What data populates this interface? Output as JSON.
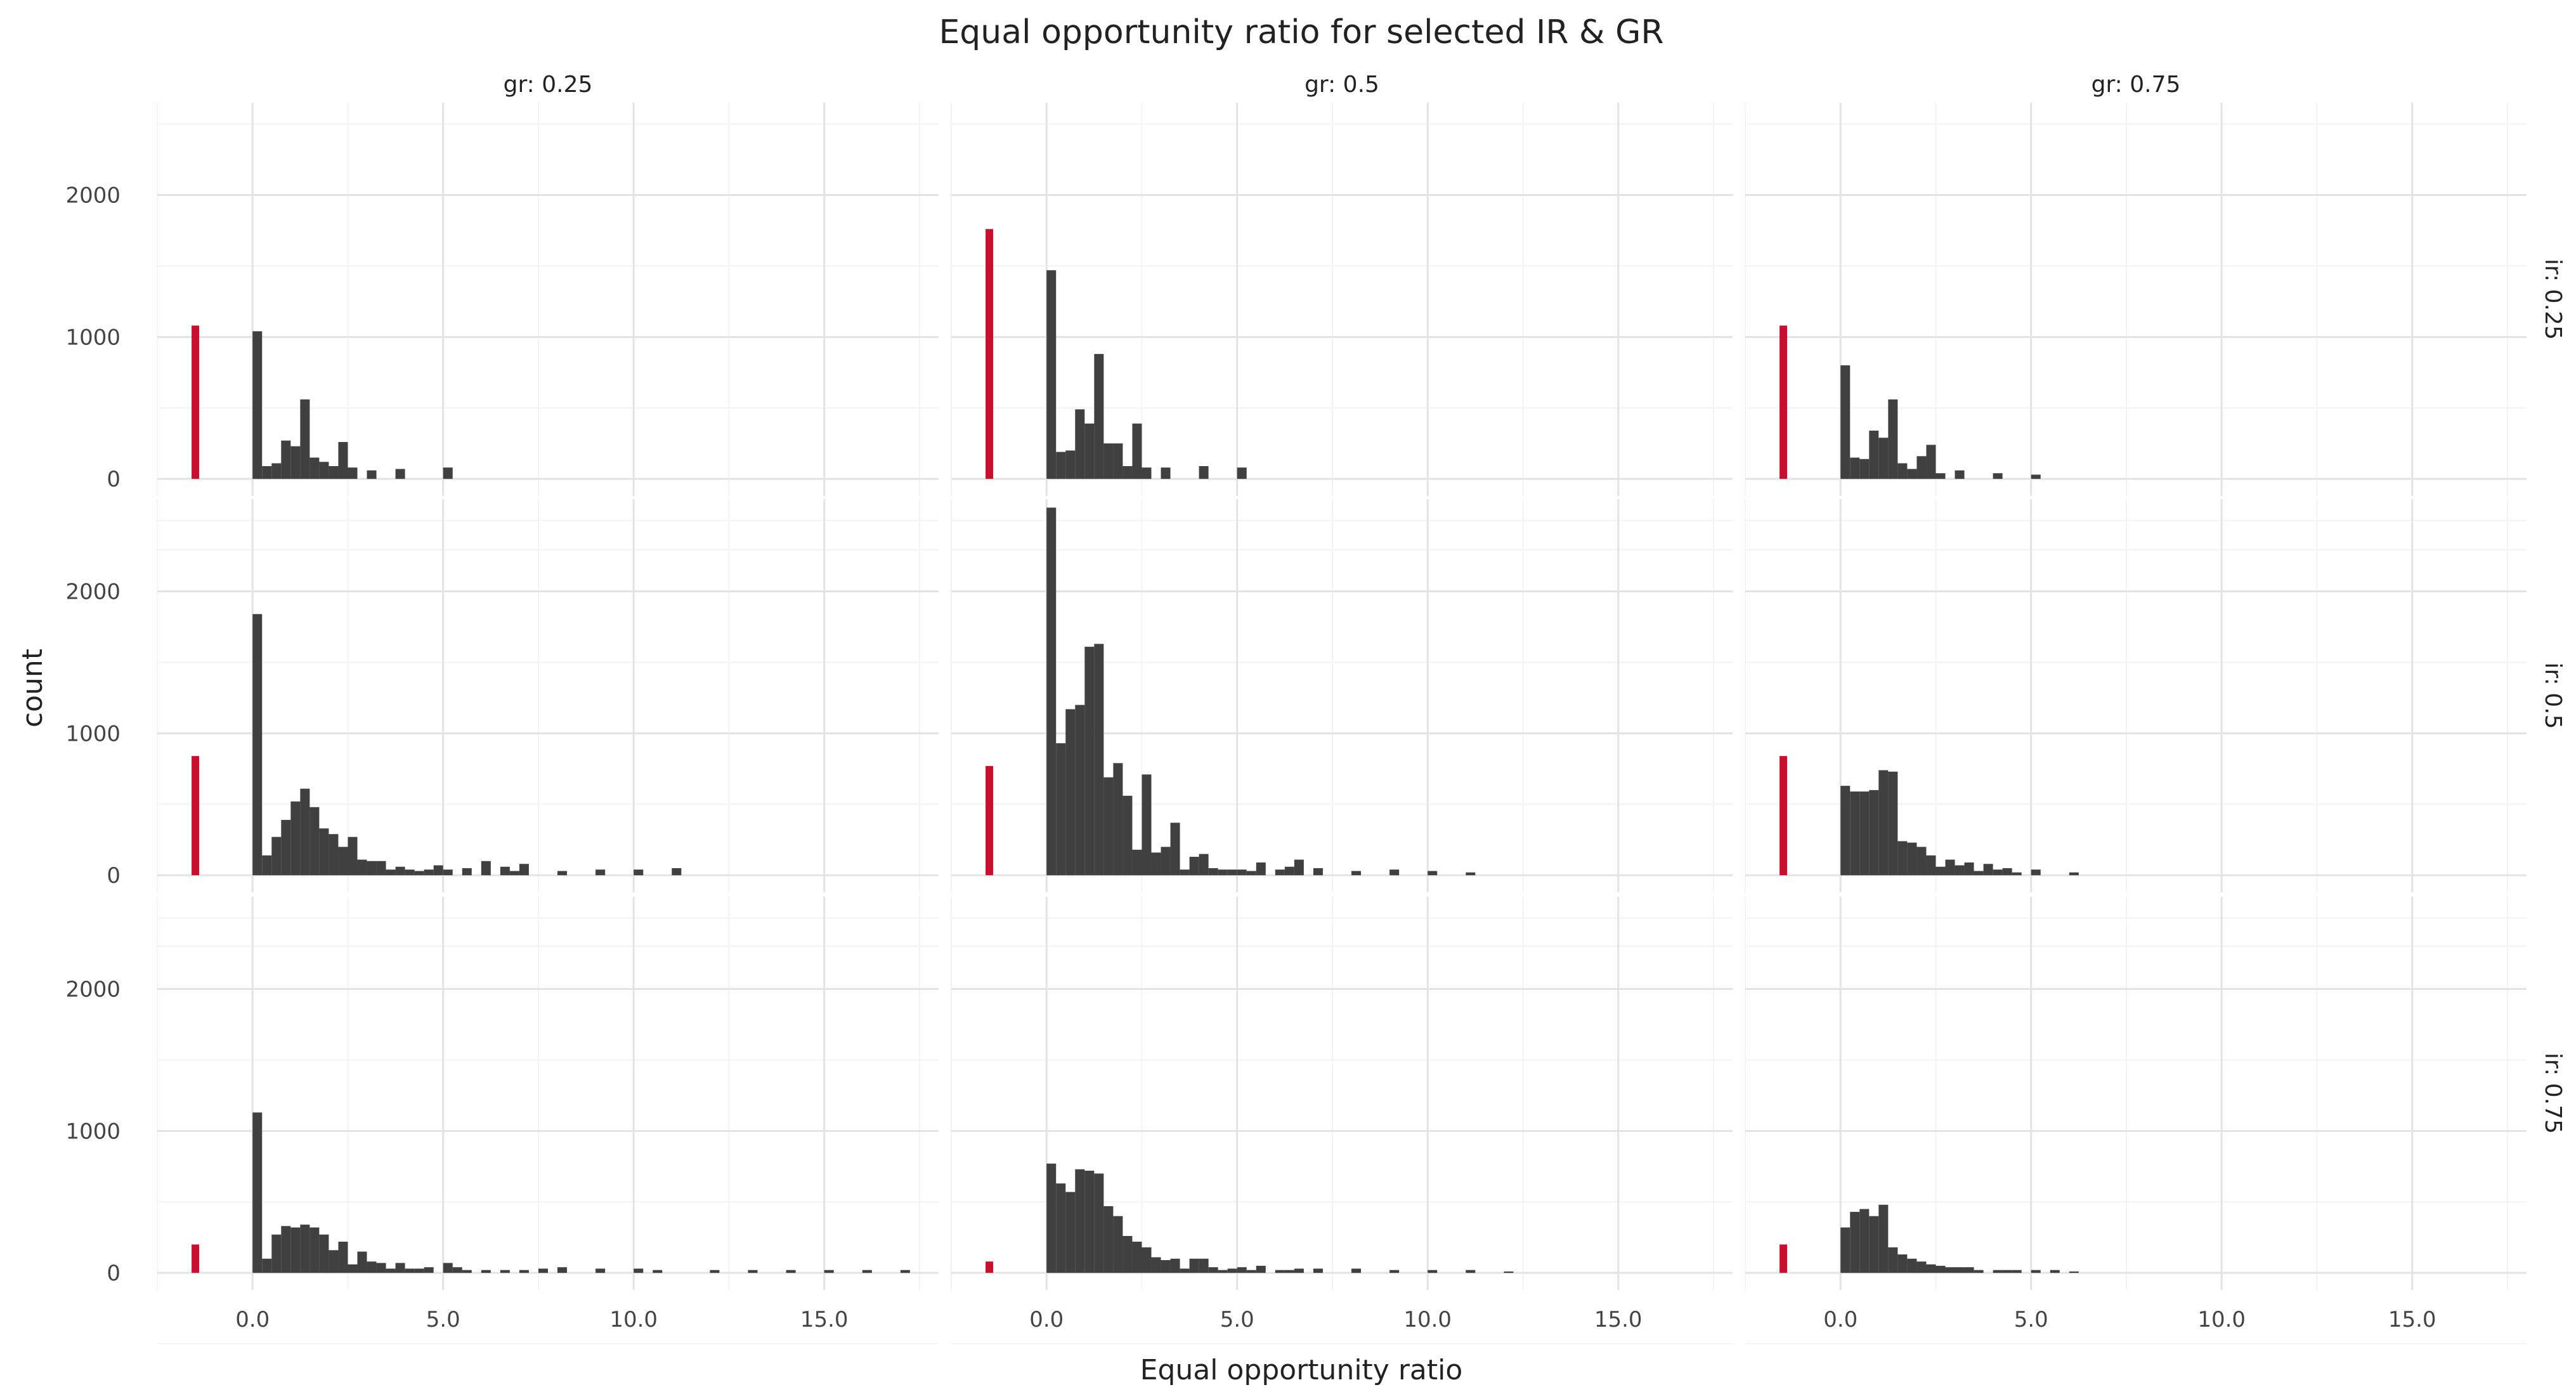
{
  "chart_data": {
    "type": "bar",
    "title": "Equal opportunity ratio for selected IR & GR",
    "xlabel": "Equal opportunity ratio",
    "ylabel": "count",
    "xlim": [
      -2.5,
      18.0
    ],
    "ylim": [
      -120,
      2650
    ],
    "x_ticks": [
      0.0,
      5.0,
      10.0,
      15.0
    ],
    "x_tick_labels": [
      "0.0",
      "5.0",
      "10.0",
      "15.0"
    ],
    "y_ticks": [
      0,
      1000,
      2000
    ],
    "y_tick_labels": [
      "0",
      "1000",
      "2000"
    ],
    "grid": true,
    "legend": "none",
    "bin_width": 0.25,
    "colors": {
      "bar": "#404040",
      "highlight": "#c8102e",
      "grid_major": "#e3e3e3",
      "grid_minor": "#f3f3f3",
      "text": "#444444"
    },
    "col_facets": [
      "gr: 0.25",
      "gr: 0.5",
      "gr: 0.75"
    ],
    "row_facets": [
      "ir: 0.25",
      "ir: 0.5",
      "ir: 0.75"
    ],
    "panels": [
      {
        "row": 0,
        "col": 0,
        "highlight": {
          "x": -1.5,
          "value": 1080
        },
        "bars": [
          [
            0.0,
            1040
          ],
          [
            0.25,
            90
          ],
          [
            0.5,
            110
          ],
          [
            0.75,
            270
          ],
          [
            1.0,
            230
          ],
          [
            1.25,
            560
          ],
          [
            1.5,
            150
          ],
          [
            1.75,
            120
          ],
          [
            2.0,
            90
          ],
          [
            2.25,
            260
          ],
          [
            2.5,
            80
          ],
          [
            3.0,
            60
          ],
          [
            3.75,
            70
          ],
          [
            5.0,
            80
          ]
        ]
      },
      {
        "row": 0,
        "col": 1,
        "highlight": {
          "x": -1.5,
          "value": 1760
        },
        "bars": [
          [
            0.0,
            1470
          ],
          [
            0.25,
            190
          ],
          [
            0.5,
            200
          ],
          [
            0.75,
            490
          ],
          [
            1.0,
            390
          ],
          [
            1.25,
            880
          ],
          [
            1.5,
            250
          ],
          [
            1.75,
            250
          ],
          [
            2.0,
            90
          ],
          [
            2.25,
            390
          ],
          [
            2.5,
            80
          ],
          [
            3.0,
            80
          ],
          [
            4.0,
            90
          ],
          [
            5.0,
            80
          ]
        ]
      },
      {
        "row": 0,
        "col": 2,
        "highlight": {
          "x": -1.5,
          "value": 1080
        },
        "bars": [
          [
            0.0,
            800
          ],
          [
            0.25,
            150
          ],
          [
            0.5,
            140
          ],
          [
            0.75,
            340
          ],
          [
            1.0,
            290
          ],
          [
            1.25,
            560
          ],
          [
            1.5,
            110
          ],
          [
            1.75,
            70
          ],
          [
            2.0,
            160
          ],
          [
            2.25,
            240
          ],
          [
            2.5,
            40
          ],
          [
            3.0,
            60
          ],
          [
            4.0,
            40
          ],
          [
            5.0,
            30
          ]
        ]
      },
      {
        "row": 1,
        "col": 0,
        "highlight": {
          "x": -1.5,
          "value": 840
        },
        "bars": [
          [
            0.0,
            1840
          ],
          [
            0.25,
            140
          ],
          [
            0.5,
            270
          ],
          [
            0.75,
            390
          ],
          [
            1.0,
            520
          ],
          [
            1.25,
            610
          ],
          [
            1.5,
            480
          ],
          [
            1.75,
            330
          ],
          [
            2.0,
            290
          ],
          [
            2.25,
            200
          ],
          [
            2.5,
            270
          ],
          [
            2.75,
            110
          ],
          [
            3.0,
            100
          ],
          [
            3.25,
            100
          ],
          [
            3.5,
            40
          ],
          [
            3.75,
            60
          ],
          [
            4.0,
            40
          ],
          [
            4.25,
            30
          ],
          [
            4.5,
            40
          ],
          [
            4.75,
            70
          ],
          [
            5.0,
            40
          ],
          [
            5.5,
            50
          ],
          [
            6.0,
            100
          ],
          [
            6.5,
            60
          ],
          [
            6.75,
            30
          ],
          [
            7.0,
            80
          ],
          [
            8.0,
            30
          ],
          [
            9.0,
            40
          ],
          [
            10.0,
            40
          ],
          [
            11.0,
            50
          ]
        ]
      },
      {
        "row": 1,
        "col": 1,
        "highlight": {
          "x": -1.5,
          "value": 770
        },
        "bars": [
          [
            0.0,
            2590
          ],
          [
            0.25,
            930
          ],
          [
            0.5,
            1170
          ],
          [
            0.75,
            1200
          ],
          [
            1.0,
            1610
          ],
          [
            1.25,
            1630
          ],
          [
            1.5,
            690
          ],
          [
            1.75,
            790
          ],
          [
            2.0,
            560
          ],
          [
            2.25,
            180
          ],
          [
            2.5,
            710
          ],
          [
            2.75,
            160
          ],
          [
            3.0,
            200
          ],
          [
            3.25,
            370
          ],
          [
            3.5,
            40
          ],
          [
            3.75,
            130
          ],
          [
            4.0,
            150
          ],
          [
            4.25,
            50
          ],
          [
            4.5,
            40
          ],
          [
            4.75,
            40
          ],
          [
            5.0,
            40
          ],
          [
            5.25,
            30
          ],
          [
            5.5,
            90
          ],
          [
            6.0,
            40
          ],
          [
            6.25,
            60
          ],
          [
            6.5,
            110
          ],
          [
            7.0,
            50
          ],
          [
            8.0,
            30
          ],
          [
            9.0,
            40
          ],
          [
            10.0,
            30
          ],
          [
            11.0,
            20
          ]
        ]
      },
      {
        "row": 1,
        "col": 2,
        "highlight": {
          "x": -1.5,
          "value": 840
        },
        "bars": [
          [
            0.0,
            630
          ],
          [
            0.25,
            590
          ],
          [
            0.5,
            590
          ],
          [
            0.75,
            600
          ],
          [
            1.0,
            740
          ],
          [
            1.25,
            730
          ],
          [
            1.5,
            240
          ],
          [
            1.75,
            230
          ],
          [
            2.0,
            200
          ],
          [
            2.25,
            140
          ],
          [
            2.5,
            60
          ],
          [
            2.75,
            110
          ],
          [
            3.0,
            70
          ],
          [
            3.25,
            90
          ],
          [
            3.5,
            30
          ],
          [
            3.75,
            80
          ],
          [
            4.0,
            40
          ],
          [
            4.25,
            50
          ],
          [
            4.5,
            20
          ],
          [
            5.0,
            40
          ],
          [
            6.0,
            20
          ]
        ]
      },
      {
        "row": 2,
        "col": 0,
        "highlight": {
          "x": -1.5,
          "value": 200
        },
        "bars": [
          [
            0.0,
            1130
          ],
          [
            0.25,
            100
          ],
          [
            0.5,
            270
          ],
          [
            0.75,
            330
          ],
          [
            1.0,
            320
          ],
          [
            1.25,
            340
          ],
          [
            1.5,
            320
          ],
          [
            1.75,
            270
          ],
          [
            2.0,
            160
          ],
          [
            2.25,
            220
          ],
          [
            2.5,
            60
          ],
          [
            2.75,
            150
          ],
          [
            3.0,
            80
          ],
          [
            3.25,
            70
          ],
          [
            3.5,
            30
          ],
          [
            3.75,
            70
          ],
          [
            4.0,
            30
          ],
          [
            4.25,
            30
          ],
          [
            4.5,
            40
          ],
          [
            5.0,
            70
          ],
          [
            5.25,
            40
          ],
          [
            5.5,
            20
          ],
          [
            6.0,
            20
          ],
          [
            6.5,
            20
          ],
          [
            7.0,
            20
          ],
          [
            7.5,
            30
          ],
          [
            8.0,
            40
          ],
          [
            9.0,
            30
          ],
          [
            10.0,
            30
          ],
          [
            10.5,
            20
          ],
          [
            12.0,
            20
          ],
          [
            13.0,
            20
          ],
          [
            14.0,
            20
          ],
          [
            15.0,
            20
          ],
          [
            16.0,
            20
          ],
          [
            17.0,
            20
          ]
        ]
      },
      {
        "row": 2,
        "col": 1,
        "highlight": {
          "x": -1.5,
          "value": 80
        },
        "bars": [
          [
            0.0,
            770
          ],
          [
            0.25,
            630
          ],
          [
            0.5,
            570
          ],
          [
            0.75,
            730
          ],
          [
            1.0,
            720
          ],
          [
            1.25,
            700
          ],
          [
            1.5,
            470
          ],
          [
            1.75,
            400
          ],
          [
            2.0,
            260
          ],
          [
            2.25,
            220
          ],
          [
            2.5,
            180
          ],
          [
            2.75,
            110
          ],
          [
            3.0,
            90
          ],
          [
            3.25,
            100
          ],
          [
            3.5,
            30
          ],
          [
            3.75,
            100
          ],
          [
            4.0,
            100
          ],
          [
            4.25,
            40
          ],
          [
            4.5,
            20
          ],
          [
            4.75,
            30
          ],
          [
            5.0,
            40
          ],
          [
            5.25,
            20
          ],
          [
            5.5,
            50
          ],
          [
            6.0,
            20
          ],
          [
            6.25,
            20
          ],
          [
            6.5,
            30
          ],
          [
            7.0,
            30
          ],
          [
            8.0,
            30
          ],
          [
            9.0,
            20
          ],
          [
            10.0,
            20
          ],
          [
            11.0,
            20
          ],
          [
            12.0,
            10
          ]
        ]
      },
      {
        "row": 2,
        "col": 2,
        "highlight": {
          "x": -1.5,
          "value": 200
        },
        "bars": [
          [
            0.0,
            320
          ],
          [
            0.25,
            430
          ],
          [
            0.5,
            450
          ],
          [
            0.75,
            400
          ],
          [
            1.0,
            480
          ],
          [
            1.25,
            180
          ],
          [
            1.5,
            130
          ],
          [
            1.75,
            100
          ],
          [
            2.0,
            80
          ],
          [
            2.25,
            60
          ],
          [
            2.5,
            50
          ],
          [
            2.75,
            40
          ],
          [
            3.0,
            40
          ],
          [
            3.25,
            40
          ],
          [
            3.5,
            20
          ],
          [
            4.0,
            20
          ],
          [
            4.25,
            20
          ],
          [
            4.5,
            20
          ],
          [
            5.0,
            20
          ],
          [
            5.5,
            20
          ],
          [
            6.0,
            10
          ]
        ]
      }
    ]
  }
}
